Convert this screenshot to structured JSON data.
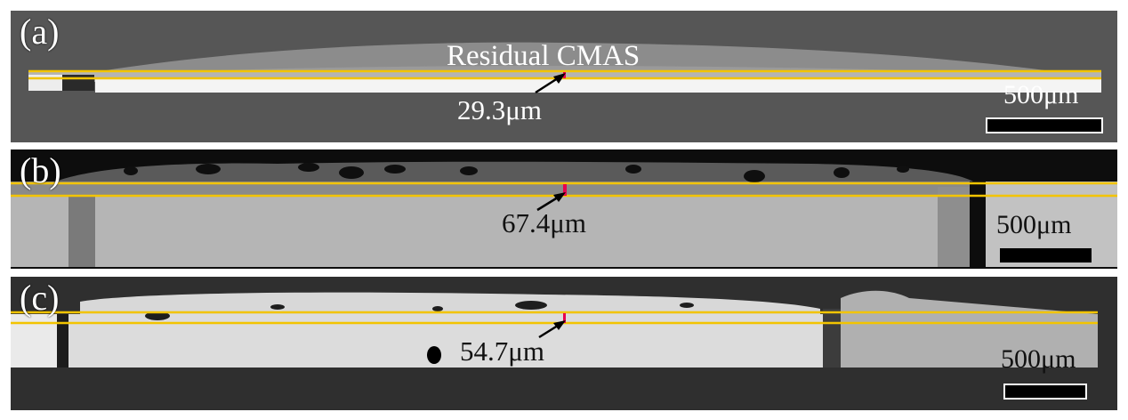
{
  "panels": [
    {
      "label": "(a)",
      "annotation": "Residual CMAS",
      "measurement": "29.3μm",
      "scalebar": "500μm"
    },
    {
      "label": "(b)",
      "measurement": "67.4μm",
      "scalebar": "500μm"
    },
    {
      "label": "(c)",
      "measurement": "54.7μm",
      "scalebar": "500μm"
    }
  ],
  "colors": {
    "guide_line": "#f2c400",
    "thickness_marker": "#e8004e",
    "arrow": "#000000",
    "text": "#ffffff"
  }
}
